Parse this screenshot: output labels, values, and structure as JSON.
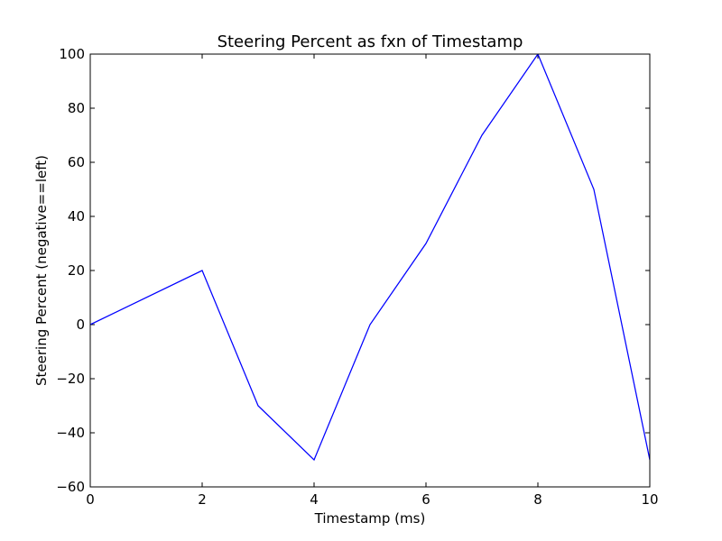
{
  "chart_data": {
    "type": "line",
    "title": "Steering Percent as fxn of Timestamp",
    "xlabel": "Timestamp (ms)",
    "ylabel": "Steering Percent (negative==left)",
    "xlim": [
      0,
      10
    ],
    "ylim": [
      -60,
      100
    ],
    "xticks": [
      0,
      2,
      4,
      6,
      8,
      10
    ],
    "yticks": [
      -60,
      -40,
      -20,
      0,
      20,
      40,
      60,
      80,
      100
    ],
    "xtick_labels": [
      "0",
      "2",
      "4",
      "6",
      "8",
      "10"
    ],
    "ytick_labels": [
      "−60",
      "−40",
      "−20",
      "0",
      "20",
      "40",
      "60",
      "80",
      "100"
    ],
    "grid": false,
    "series": [
      {
        "color": "#0000ff",
        "x": [
          0,
          2,
          3,
          4,
          5,
          6,
          7,
          8,
          9,
          10
        ],
        "y": [
          0,
          20,
          -30,
          -50,
          0,
          30,
          70,
          100,
          50,
          -50
        ]
      }
    ]
  }
}
